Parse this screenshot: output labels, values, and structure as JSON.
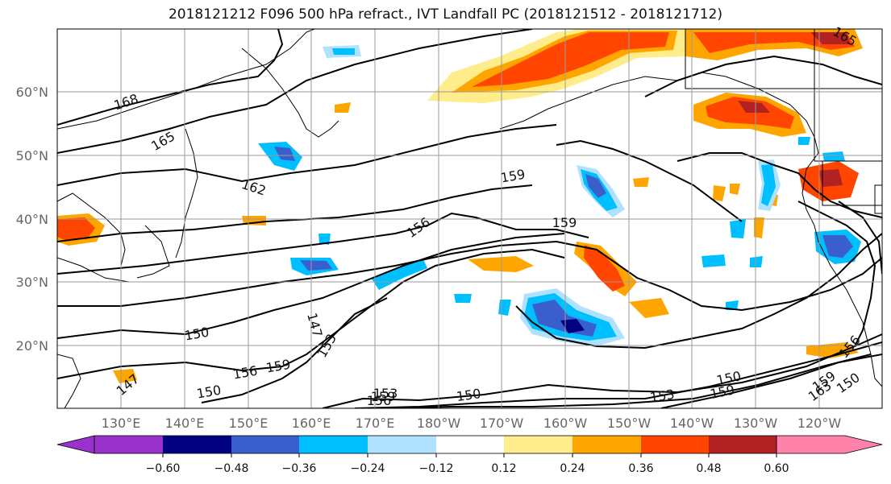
{
  "title": "2018121212 F096 500 hPa refract., IVT Landfall PC (2018121512 - 2018121712)",
  "lat_labels": [
    "60°N",
    "50°N",
    "40°N",
    "30°N",
    "20°N"
  ],
  "lon_labels": [
    "130°E",
    "140°E",
    "150°E",
    "160°E",
    "170°E",
    "180°W",
    "170°W",
    "160°W",
    "150°W",
    "140°W",
    "130°W",
    "120°W"
  ],
  "contour_labels": [
    "168",
    "165",
    "162",
    "159",
    "156",
    "159",
    "153",
    "150",
    "147",
    "156",
    "159",
    "150",
    "147",
    "153",
    "156",
    "159",
    "150",
    "153",
    "159",
    "150",
    "156",
    "163",
    "165",
    "159",
    "150"
  ],
  "colorbar": {
    "colors": [
      "#9932CC",
      "#000080",
      "#3A5FCD",
      "#00BFFF",
      "#B0E2FF",
      "#FFFFFF",
      "#FFEC8B",
      "#FFA500",
      "#FF4500",
      "#B22222",
      "#FF82AB"
    ],
    "ticks": [
      "−0.60",
      "−0.48",
      "−0.36",
      "−0.24",
      "−0.12",
      "0.12",
      "0.24",
      "0.36",
      "0.48",
      "0.60"
    ]
  }
}
